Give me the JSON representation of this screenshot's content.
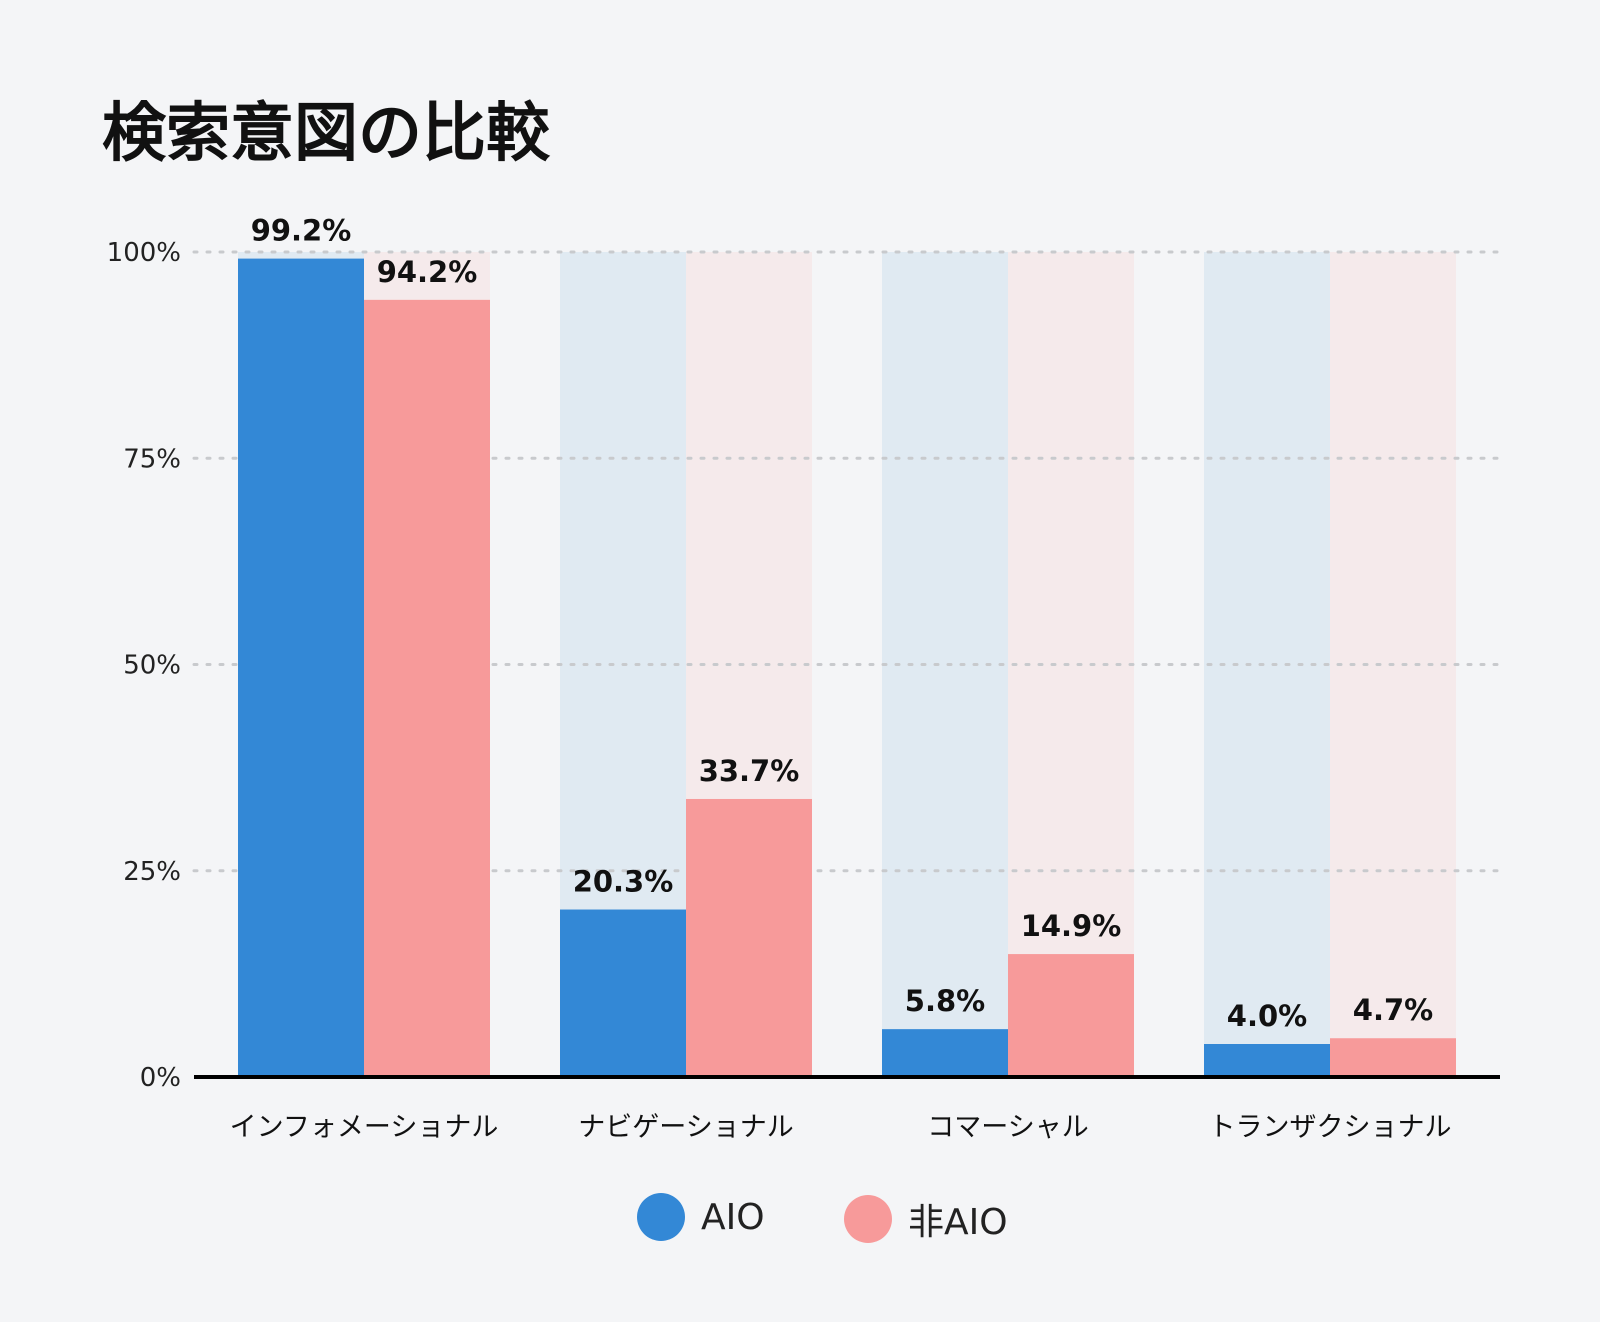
{
  "chart_data": {
    "type": "bar",
    "title": "検索意図の比較",
    "categories": [
      "インフォメーショナル",
      "ナビゲーショナル",
      "コマーシャル",
      "トランザクショナル"
    ],
    "series": [
      {
        "name": "AIO",
        "values": [
          99.2,
          20.3,
          5.8,
          4.0
        ],
        "labels": [
          "99.2%",
          "20.3%",
          "5.8%",
          "4.0%"
        ],
        "color": "#3388d6",
        "track_color": "#e0eaf2"
      },
      {
        "name": "非AIO",
        "values": [
          94.2,
          33.7,
          14.9,
          4.7
        ],
        "labels": [
          "94.2%",
          "33.7%",
          "14.9%",
          "4.7%"
        ],
        "color": "#f79a9a",
        "track_color": "#f5eaeb"
      }
    ],
    "yticks": [
      0,
      25,
      50,
      75,
      100
    ],
    "ytick_labels": [
      "0%",
      "25%",
      "50%",
      "75%",
      "100%"
    ],
    "ylim": [
      0,
      100
    ],
    "grid": true,
    "legend_position": "bottom-center"
  }
}
